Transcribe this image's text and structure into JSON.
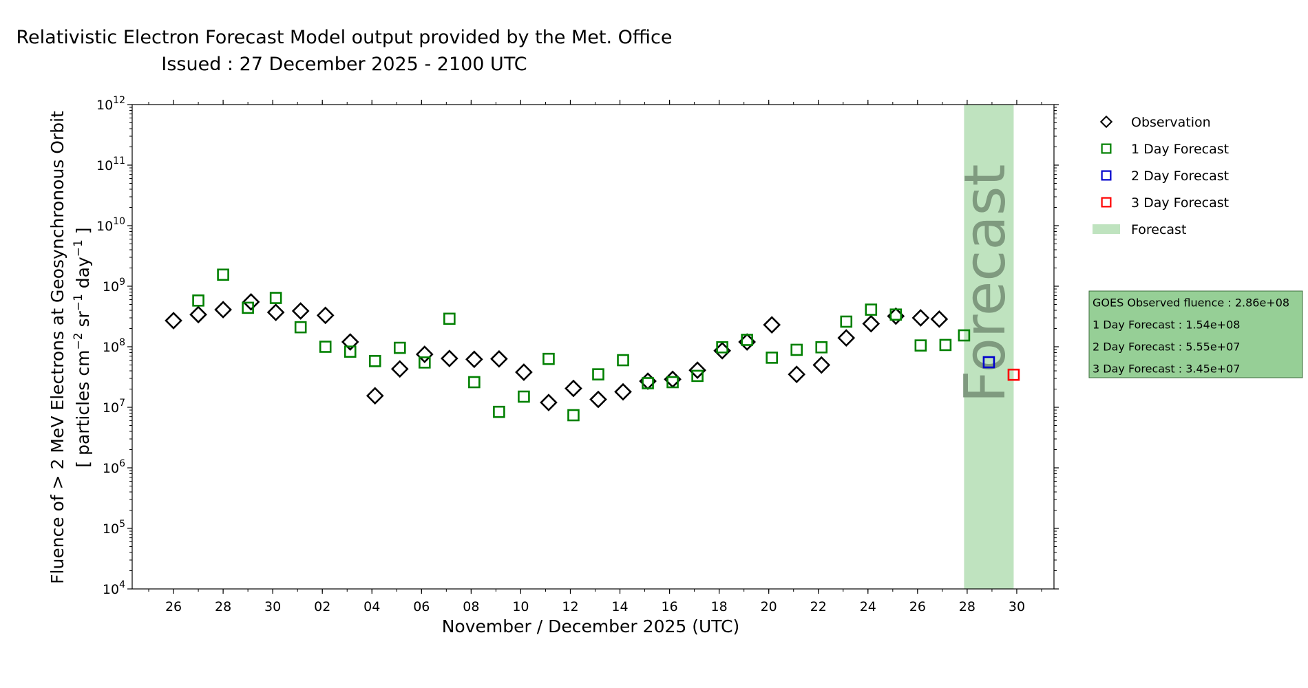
{
  "chart_data": {
    "type": "scatter",
    "title": "Relativistic Electron Forecast Model output provided by the Met. Office",
    "subtitle": "Issued : 27 December 2025 - 2100 UTC",
    "xlabel": "November / December 2025 (UTC)",
    "ylabel_line1": "Fluence of > 2 MeV Electrons at Geosynchronous Orbit",
    "ylabel_line2_pre": "[ particles cm",
    "ylabel_line2_sup1": "−2",
    "ylabel_line2_mid": " sr",
    "ylabel_line2_sup2": "−1",
    "ylabel_line2_mid2": " day",
    "ylabel_line2_sup3": "−1",
    "ylabel_line2_post": " ]",
    "y_scale": "log",
    "ylim_exponent": [
      4,
      12
    ],
    "y_tick_base": "10",
    "y_tick_exponents": [
      "4",
      "5",
      "6",
      "7",
      "8",
      "9",
      "10",
      "11",
      "12"
    ],
    "x_range_dates": [
      "2025-11-24T08:00",
      "2025-12-31T12:00"
    ],
    "x_tick_labels": [
      "26",
      "28",
      "30",
      "02",
      "04",
      "06",
      "08",
      "10",
      "12",
      "14",
      "16",
      "18",
      "20",
      "22",
      "24",
      "26",
      "28",
      "30"
    ],
    "x_tick_dates": [
      "2025-11-26",
      "2025-11-28",
      "2025-11-30",
      "2025-12-02",
      "2025-12-04",
      "2025-12-06",
      "2025-12-08",
      "2025-12-10",
      "2025-12-12",
      "2025-12-14",
      "2025-12-16",
      "2025-12-18",
      "2025-12-20",
      "2025-12-22",
      "2025-12-24",
      "2025-12-26",
      "2025-12-28",
      "2025-12-30"
    ],
    "forecast_band": {
      "start": "2025-12-27T21:00",
      "end": "2025-12-29T21:00",
      "label": "Forecast",
      "color": "#bfe3bf"
    },
    "legend_placement": "outside-right",
    "grid": false,
    "series": [
      {
        "name": "Observation",
        "marker": "diamond",
        "color": "#000000",
        "points": [
          {
            "x": "2025-11-26T00:00",
            "y": 270000000.0
          },
          {
            "x": "2025-11-27T00:00",
            "y": 340000000.0
          },
          {
            "x": "2025-11-28T00:00",
            "y": 410000000.0
          },
          {
            "x": "2025-11-29T03:00",
            "y": 550000000.0
          },
          {
            "x": "2025-11-30T03:00",
            "y": 370000000.0
          },
          {
            "x": "2025-12-01T03:00",
            "y": 390000000.0
          },
          {
            "x": "2025-12-02T03:00",
            "y": 330000000.0
          },
          {
            "x": "2025-12-03T03:00",
            "y": 120000000.0
          },
          {
            "x": "2025-12-04T03:00",
            "y": 15500000.0
          },
          {
            "x": "2025-12-05T03:00",
            "y": 43000000.0
          },
          {
            "x": "2025-12-06T03:00",
            "y": 75000000.0
          },
          {
            "x": "2025-12-07T03:00",
            "y": 64000000.0
          },
          {
            "x": "2025-12-08T03:00",
            "y": 62000000.0
          },
          {
            "x": "2025-12-09T03:00",
            "y": 63000000.0
          },
          {
            "x": "2025-12-10T03:00",
            "y": 38000000.0
          },
          {
            "x": "2025-12-11T03:00",
            "y": 12000000.0
          },
          {
            "x": "2025-12-12T03:00",
            "y": 20500000.0
          },
          {
            "x": "2025-12-13T03:00",
            "y": 13500000.0
          },
          {
            "x": "2025-12-14T03:00",
            "y": 18000000.0
          },
          {
            "x": "2025-12-15T03:00",
            "y": 27000000.0
          },
          {
            "x": "2025-12-16T03:00",
            "y": 29000000.0
          },
          {
            "x": "2025-12-17T03:00",
            "y": 41000000.0
          },
          {
            "x": "2025-12-18T03:00",
            "y": 86000000.0
          },
          {
            "x": "2025-12-19T03:00",
            "y": 120000000.0
          },
          {
            "x": "2025-12-20T03:00",
            "y": 230000000.0
          },
          {
            "x": "2025-12-21T03:00",
            "y": 35000000.0
          },
          {
            "x": "2025-12-22T03:00",
            "y": 50000000.0
          },
          {
            "x": "2025-12-23T03:00",
            "y": 140000000.0
          },
          {
            "x": "2025-12-24T03:00",
            "y": 240000000.0
          },
          {
            "x": "2025-12-25T03:00",
            "y": 320000000.0
          },
          {
            "x": "2025-12-26T03:00",
            "y": 300000000.0
          },
          {
            "x": "2025-12-26T21:00",
            "y": 286000000.0
          }
        ]
      },
      {
        "name": "1 Day Forecast",
        "marker": "square",
        "color": "#008000",
        "points": [
          {
            "x": "2025-11-27T00:00",
            "y": 580000000.0
          },
          {
            "x": "2025-11-28T00:00",
            "y": 1550000000.0
          },
          {
            "x": "2025-11-29T00:00",
            "y": 440000000.0
          },
          {
            "x": "2025-11-30T03:00",
            "y": 640000000.0
          },
          {
            "x": "2025-12-01T03:00",
            "y": 210000000.0
          },
          {
            "x": "2025-12-02T03:00",
            "y": 100000000.0
          },
          {
            "x": "2025-12-03T03:00",
            "y": 83000000.0
          },
          {
            "x": "2025-12-04T03:00",
            "y": 58000000.0
          },
          {
            "x": "2025-12-05T03:00",
            "y": 96000000.0
          },
          {
            "x": "2025-12-06T03:00",
            "y": 55000000.0
          },
          {
            "x": "2025-12-07T03:00",
            "y": 290000000.0
          },
          {
            "x": "2025-12-08T03:00",
            "y": 26000000.0
          },
          {
            "x": "2025-12-09T03:00",
            "y": 8400000.0
          },
          {
            "x": "2025-12-10T03:00",
            "y": 15000000.0
          },
          {
            "x": "2025-12-11T03:00",
            "y": 63000000.0
          },
          {
            "x": "2025-12-12T03:00",
            "y": 7400000.0
          },
          {
            "x": "2025-12-13T03:00",
            "y": 35000000.0
          },
          {
            "x": "2025-12-14T03:00",
            "y": 60000000.0
          },
          {
            "x": "2025-12-15T03:00",
            "y": 25000000.0
          },
          {
            "x": "2025-12-16T03:00",
            "y": 26000000.0
          },
          {
            "x": "2025-12-17T03:00",
            "y": 33000000.0
          },
          {
            "x": "2025-12-18T03:00",
            "y": 98000000.0
          },
          {
            "x": "2025-12-19T03:00",
            "y": 130000000.0
          },
          {
            "x": "2025-12-20T03:00",
            "y": 66000000.0
          },
          {
            "x": "2025-12-21T03:00",
            "y": 89000000.0
          },
          {
            "x": "2025-12-22T03:00",
            "y": 98000000.0
          },
          {
            "x": "2025-12-23T03:00",
            "y": 260000000.0
          },
          {
            "x": "2025-12-24T03:00",
            "y": 410000000.0
          },
          {
            "x": "2025-12-25T03:00",
            "y": 340000000.0
          },
          {
            "x": "2025-12-26T03:00",
            "y": 105000000.0
          },
          {
            "x": "2025-12-27T03:00",
            "y": 107000000.0
          },
          {
            "x": "2025-12-27T21:00",
            "y": 154000000.0
          }
        ]
      },
      {
        "name": "2 Day Forecast",
        "marker": "square",
        "color": "#0000cc",
        "points": [
          {
            "x": "2025-12-28T21:00",
            "y": 55500000.0
          }
        ]
      },
      {
        "name": "3 Day Forecast",
        "marker": "square",
        "color": "#ff0000",
        "points": [
          {
            "x": "2025-12-29T21:00",
            "y": 34500000.0
          }
        ]
      }
    ],
    "legend": [
      {
        "label": "Observation",
        "marker": "diamond",
        "color": "#000000"
      },
      {
        "label": "1 Day Forecast",
        "marker": "square",
        "color": "#008000"
      },
      {
        "label": "2 Day Forecast",
        "marker": "square",
        "color": "#0000cc"
      },
      {
        "label": "3 Day Forecast",
        "marker": "square",
        "color": "#ff0000"
      },
      {
        "label": "Forecast",
        "marker": "patch",
        "color": "#bfe3bf"
      }
    ],
    "info_box": {
      "background": "#96cf96",
      "lines": [
        "GOES Observed fluence : 2.86e+08",
        "1 Day Forecast : 1.54e+08",
        "2 Day Forecast : 5.55e+07",
        "3 Day Forecast : 3.45e+07"
      ]
    }
  }
}
